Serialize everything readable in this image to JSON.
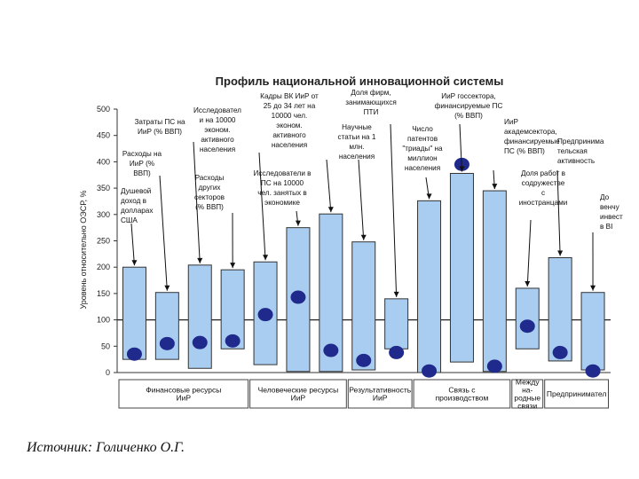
{
  "chart_data": {
    "type": "bar",
    "title": "Профиль национальной инновационной системы",
    "ylabel": "Уровень относительно ОЭСР, %",
    "ylim": [
      0,
      500
    ],
    "yticks": [
      0,
      50,
      100,
      150,
      200,
      250,
      300,
      350,
      400,
      450,
      500
    ],
    "reference_line": 100,
    "bars": [
      {
        "low": 25,
        "high": 200,
        "marker": 35,
        "label": [
          "Душевой",
          "доход в",
          "долларах",
          "США"
        ]
      },
      {
        "low": 25,
        "high": 152,
        "marker": 55,
        "label": [
          "Расходы на",
          "ИиР (%",
          "ВВП)"
        ]
      },
      {
        "low": 8,
        "high": 204,
        "marker": 57,
        "label": [
          "Затраты ПС на",
          "ИиР (% ВВП)"
        ]
      },
      {
        "low": 45,
        "high": 195,
        "marker": 60,
        "label": [
          "Расходы",
          "других",
          "секторов",
          "(% ВВП)"
        ]
      },
      {
        "low": 15,
        "high": 210,
        "marker": 110,
        "label": [
          "Исследовател",
          "и на 10000",
          "эконом.",
          "активного",
          "населения"
        ]
      },
      {
        "low": 2,
        "high": 275,
        "marker": 143,
        "label": [
          "Исследователи в",
          "ПС на 10000",
          "чел. занятых в",
          "экономике"
        ]
      },
      {
        "low": 2,
        "high": 301,
        "marker": 42,
        "label": [
          "Кадры ВК ИиР от",
          "25 до 34 лет на",
          "10000 чел.",
          "эконом.",
          "активного",
          "населения"
        ]
      },
      {
        "low": 5,
        "high": 248,
        "marker": 23,
        "label": [
          "Научные",
          "статьи на 1",
          "млн.",
          "населения"
        ]
      },
      {
        "low": 45,
        "high": 140,
        "marker": 38,
        "label": [
          "Доля фирм,",
          "занимающихся",
          "ПТИ"
        ]
      },
      {
        "low": 0,
        "high": 326,
        "marker": 3,
        "label": [
          "Число",
          "патентов",
          "\"триады\" на",
          "миллион",
          "населения"
        ]
      },
      {
        "low": 20,
        "high": 378,
        "marker": 395,
        "label": [
          "ИиР госсектора,",
          "финансируемые ПС",
          "(% ВВП)"
        ]
      },
      {
        "low": 2,
        "high": 345,
        "marker": 12,
        "label": [
          "ИиР",
          "академсектора,",
          "финансируемые",
          "ПС (% ВВП)"
        ]
      },
      {
        "low": 45,
        "high": 160,
        "marker": 88,
        "label": [
          "Доля работ в",
          "содружестве",
          "с",
          "иностранцами"
        ]
      },
      {
        "low": 22,
        "high": 218,
        "marker": 38,
        "label": [
          "Предпринима",
          "тельская",
          "активность"
        ]
      },
      {
        "low": 5,
        "high": 152,
        "marker": 3,
        "label": [
          "До",
          "венчу",
          "инвест",
          "в ВІ"
        ]
      }
    ],
    "groups": [
      {
        "name": [
          "Финансовые ресурсы",
          "ИиР"
        ],
        "from": 0,
        "to": 3
      },
      {
        "name": [
          "Человеческие ресурсы",
          "ИиР"
        ],
        "from": 4,
        "to": 6
      },
      {
        "name": [
          "Результативность",
          "ИиР"
        ],
        "from": 7,
        "to": 8
      },
      {
        "name": [
          "Связь с",
          "производством"
        ],
        "from": 9,
        "to": 11
      },
      {
        "name": [
          "Между",
          "на-",
          "родные",
          "связи"
        ],
        "from": 12,
        "to": 12
      },
      {
        "name": [
          "Предпринимател"
        ],
        "from": 13,
        "to": 14
      }
    ],
    "colors": {
      "bar_fill": "#a9cdf0",
      "bar_stroke": "#333333",
      "marker": "#1f2a8c"
    }
  },
  "source": "Источник: Голиченко О.Г."
}
